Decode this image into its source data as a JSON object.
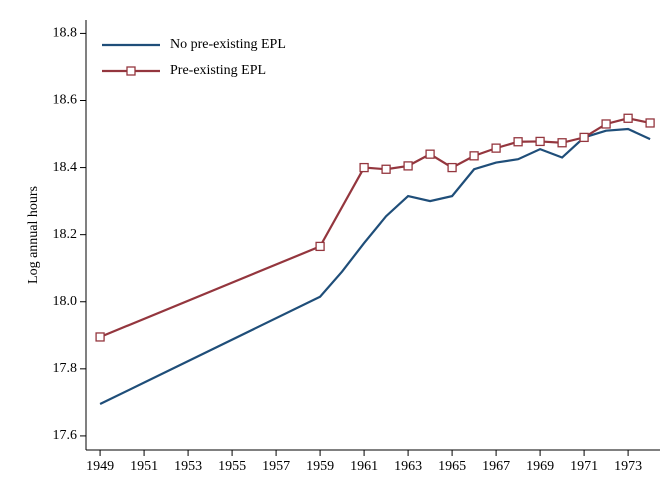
{
  "chart_data": {
    "type": "line",
    "y_label": "Log annual hours",
    "series": [
      {
        "name": "No pre-existing EPL",
        "color": "#1f4e79",
        "marker": "none",
        "x": [
          1949,
          1959,
          1960,
          1961,
          1962,
          1963,
          1964,
          1965,
          1966,
          1967,
          1968,
          1969,
          1970,
          1971,
          1972,
          1973,
          1974
        ],
        "values": [
          17.695,
          18.015,
          18.09,
          18.175,
          18.255,
          18.315,
          18.3,
          18.315,
          18.395,
          18.415,
          18.425,
          18.455,
          18.43,
          18.49,
          18.51,
          18.515,
          18.485
        ]
      },
      {
        "name": "Pre-existing EPL",
        "color": "#94363e",
        "marker": "square",
        "x": [
          1949,
          1959,
          1961,
          1962,
          1963,
          1964,
          1965,
          1966,
          1967,
          1968,
          1969,
          1970,
          1971,
          1972,
          1973,
          1974
        ],
        "values": [
          17.895,
          18.165,
          18.4,
          18.395,
          18.405,
          18.44,
          18.4,
          18.435,
          18.458,
          18.477,
          18.478,
          18.474,
          18.49,
          18.53,
          18.547,
          18.533
        ]
      }
    ],
    "xlim": [
      1948.36,
      1974.45
    ],
    "xticks": [
      1949,
      1951,
      1953,
      1955,
      1957,
      1959,
      1961,
      1963,
      1965,
      1967,
      1969,
      1971,
      1973
    ],
    "ylim": [
      17.558,
      18.84
    ],
    "yticks": [
      17.6,
      17.8,
      {
        "value": 18.0,
        "label": "18.0"
      },
      18.2,
      18.4,
      18.6,
      18.8
    ],
    "legend": "top-left"
  }
}
